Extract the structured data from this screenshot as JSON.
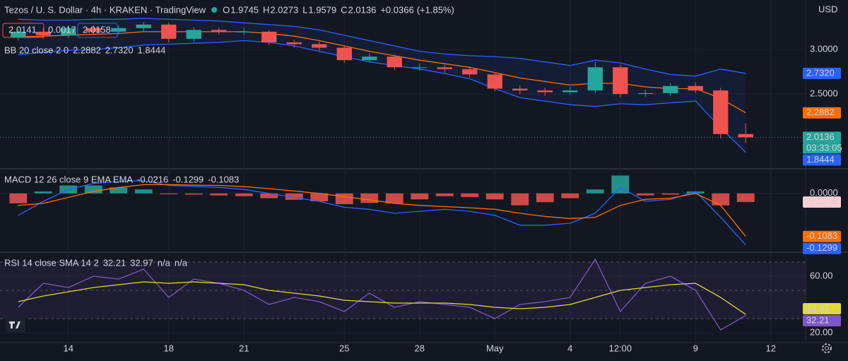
{
  "header": {
    "title": "Tezos / U. S. Dollar · 4h · KRAKEN · TradingView",
    "o_label": "O",
    "open": 1.9745,
    "h_label": "H",
    "high": 2.0273,
    "l_label": "L",
    "low": 1.9579,
    "c_label": "C",
    "close": 2.0136,
    "change": "+0.0366",
    "change_pct": "(+1.85%)",
    "currency": "USD",
    "sell": 2.0141,
    "spread": 0.0017,
    "buy": 2.0158,
    "countdown": "03:33:05"
  },
  "chart_data": [
    {
      "type": "candlestick",
      "legend": "BB 20 close 2 0",
      "open": [
        3.14,
        3.2,
        3.16,
        3.24,
        3.2,
        3.24,
        3.28,
        3.12,
        3.22,
        3.2,
        3.2,
        3.08,
        3.06,
        3.02,
        2.88,
        2.92,
        2.8,
        2.8,
        2.78,
        2.72,
        2.56,
        2.54,
        2.52,
        2.54,
        2.8,
        2.5,
        2.51,
        2.59,
        2.54,
        2.05,
        null
      ],
      "high": [
        3.23,
        3.24,
        3.27,
        3.27,
        3.27,
        3.31,
        3.3,
        3.25,
        3.25,
        3.24,
        3.22,
        3.11,
        3.09,
        3.04,
        2.95,
        2.94,
        2.84,
        2.83,
        2.8,
        2.74,
        2.6,
        2.57,
        2.58,
        2.86,
        2.83,
        2.55,
        2.62,
        2.63,
        2.57,
        2.17,
        null
      ],
      "low": [
        3.1,
        3.12,
        3.13,
        3.17,
        3.17,
        3.2,
        3.08,
        3.09,
        3.17,
        3.16,
        3.05,
        3.02,
        2.98,
        2.85,
        2.86,
        2.77,
        2.76,
        2.74,
        2.69,
        2.53,
        2.5,
        2.48,
        2.49,
        2.51,
        2.46,
        2.47,
        2.48,
        2.51,
        2.0,
        1.95,
        null
      ],
      "close": [
        3.2,
        3.16,
        3.24,
        3.2,
        3.24,
        3.28,
        3.12,
        3.22,
        3.2,
        3.2,
        3.08,
        3.06,
        3.02,
        2.88,
        2.92,
        2.8,
        2.8,
        2.78,
        2.72,
        2.56,
        2.54,
        2.52,
        2.54,
        2.8,
        2.5,
        2.51,
        2.59,
        2.54,
        2.05,
        2.0136,
        null
      ],
      "bb_upper": [
        3.34,
        3.33,
        3.33,
        3.34,
        3.34,
        3.35,
        3.34,
        3.33,
        3.32,
        3.3,
        3.28,
        3.26,
        3.22,
        3.16,
        3.1,
        3.04,
        2.98,
        2.95,
        2.93,
        2.92,
        2.9,
        2.86,
        2.82,
        2.88,
        2.85,
        2.78,
        2.72,
        2.7,
        2.78,
        2.732,
        null
      ],
      "bb_upper_last_label": "2.7320",
      "bb_basis": [
        3.14,
        3.15,
        3.16,
        3.17,
        3.18,
        3.2,
        3.2,
        3.2,
        3.2,
        3.2,
        3.18,
        3.15,
        3.1,
        3.04,
        2.98,
        2.93,
        2.88,
        2.84,
        2.8,
        2.74,
        2.68,
        2.64,
        2.6,
        2.62,
        2.62,
        2.58,
        2.56,
        2.56,
        2.45,
        2.2882,
        null
      ],
      "bb_lower": [
        2.94,
        2.97,
        2.99,
        3.0,
        3.02,
        3.05,
        3.06,
        3.07,
        3.08,
        3.1,
        3.08,
        3.04,
        2.98,
        2.92,
        2.86,
        2.82,
        2.78,
        2.73,
        2.67,
        2.56,
        2.46,
        2.42,
        2.38,
        2.36,
        2.39,
        2.38,
        2.4,
        2.42,
        2.12,
        1.8444,
        null
      ],
      "up_color": "#26a69a",
      "down_color": "#ef5350",
      "bb_color": "#2962ff",
      "basis_color": "#ff6d00",
      "ylim": [
        1.667,
        3.556
      ],
      "yticks": [
        {
          "value": 2.5,
          "label": "2.5000"
        },
        {
          "value": 3,
          "label": "3.0000"
        }
      ]
    },
    {
      "type": "macd",
      "legend": "MACD 12 26 close 9 EMA EMA",
      "histogram": [
        -0.025,
        0.005,
        0.02,
        0.02,
        0.015,
        0.01,
        -0.002,
        -0.003,
        -0.005,
        -0.007,
        -0.012,
        -0.016,
        -0.02,
        -0.027,
        -0.024,
        -0.025,
        -0.015,
        -0.007,
        -0.009,
        -0.015,
        -0.03,
        -0.022,
        -0.012,
        0.01,
        0.045,
        -0.005,
        -0.003,
        0.005,
        -0.03,
        -0.0216,
        null
      ],
      "macd": [
        -0.055,
        -0.02,
        0.01,
        0.025,
        0.03,
        0.032,
        0.02,
        0.018,
        0.015,
        0.01,
        0.0,
        -0.01,
        -0.02,
        -0.035,
        -0.04,
        -0.05,
        -0.045,
        -0.04,
        -0.045,
        -0.055,
        -0.08,
        -0.08,
        -0.075,
        -0.05,
        0.015,
        -0.02,
        -0.015,
        0.005,
        -0.06,
        -0.1299,
        null
      ],
      "signal": [
        -0.03,
        -0.025,
        -0.01,
        0.005,
        0.015,
        0.022,
        0.022,
        0.021,
        0.02,
        0.017,
        0.012,
        0.006,
        0.0,
        -0.008,
        -0.016,
        -0.025,
        -0.03,
        -0.033,
        -0.036,
        -0.04,
        -0.05,
        -0.058,
        -0.063,
        -0.06,
        -0.03,
        -0.015,
        -0.012,
        0.0,
        -0.03,
        -0.1083,
        null
      ],
      "positive_color": "#26a69a",
      "negative_color": "#ef5350",
      "macd_color": "#2962ff",
      "signal_color": "#ff6d00",
      "ylim": [
        -0.146,
        0.06
      ],
      "yticks": [
        {
          "value": 0,
          "label": "0.0000"
        }
      ]
    },
    {
      "type": "rsi",
      "legend": "RSI 14 close SMA 14 2",
      "categories": [
        null,
        null,
        "14",
        null,
        null,
        null,
        "18",
        null,
        null,
        "21",
        null,
        null,
        null,
        "25",
        null,
        null,
        "28",
        null,
        null,
        "May",
        null,
        null,
        "4",
        null,
        "12:00",
        null,
        null,
        "9",
        null,
        null,
        "12"
      ],
      "rsi": [
        38,
        55,
        52,
        60,
        58,
        65,
        45,
        58,
        55,
        50,
        40,
        45,
        42,
        35,
        48,
        38,
        42,
        40,
        38,
        30,
        40,
        42,
        45,
        72,
        35,
        55,
        60,
        50,
        22,
        32.21,
        null
      ],
      "sma": [
        42,
        46,
        49,
        52,
        54,
        56,
        55,
        56,
        55,
        54,
        50,
        48,
        46,
        43,
        42,
        41,
        41,
        41,
        40,
        38,
        37,
        38,
        40,
        45,
        50,
        52,
        54,
        55,
        45,
        32.97,
        null
      ],
      "extra": [
        "n/a",
        "n/a"
      ],
      "rsi_color": "#7e57c2",
      "sma_color": "#e0d93a",
      "bands": [
        70,
        50,
        30
      ],
      "ylim": [
        13,
        76.5
      ],
      "yticks": [
        {
          "value": 20,
          "label": "20.00"
        },
        {
          "value": 60,
          "label": "60.00"
        }
      ]
    }
  ]
}
